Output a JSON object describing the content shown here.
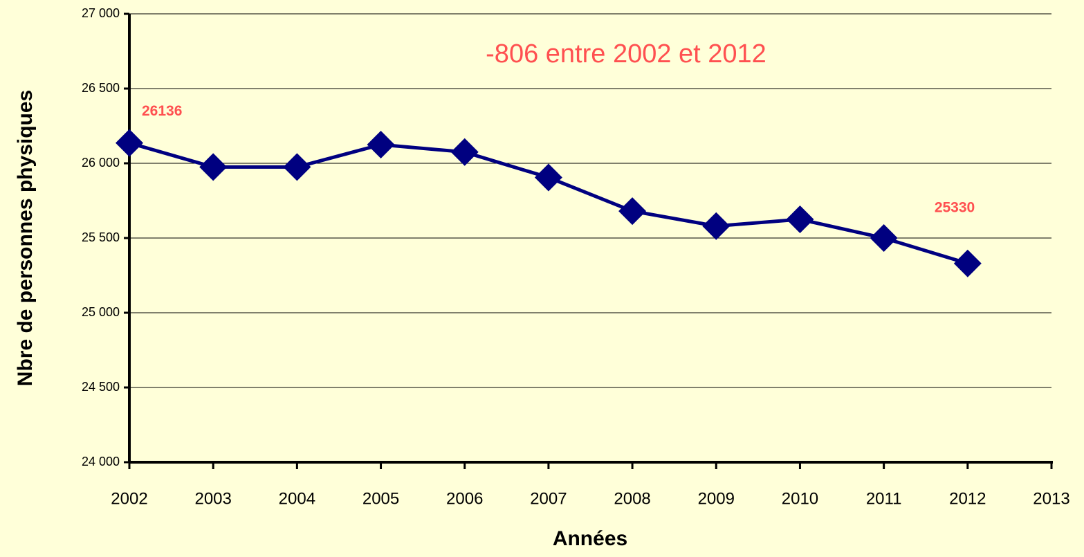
{
  "chart_data": {
    "type": "line",
    "annotation": "-806 entre 2002 et 2012",
    "x_label": "Années",
    "y_label": "Nbre de personnes physiques",
    "x": [
      2002,
      2003,
      2004,
      2005,
      2006,
      2007,
      2008,
      2009,
      2010,
      2011,
      2012
    ],
    "series": [
      {
        "name": "Nbre de personnes physiques",
        "color": "#000080",
        "values": [
          26136,
          25975,
          25975,
          26125,
          26075,
          25905,
          25680,
          25580,
          25625,
          25500,
          25330
        ],
        "value_labels": [
          "26136",
          null,
          null,
          null,
          null,
          null,
          null,
          null,
          null,
          null,
          "25330"
        ],
        "label_color": "#ff5050"
      }
    ],
    "xlim": [
      2002,
      2013
    ],
    "xticks": [
      2002,
      2003,
      2004,
      2005,
      2006,
      2007,
      2008,
      2009,
      2010,
      2011,
      2012,
      2013
    ],
    "ylim": [
      24000,
      27000
    ],
    "yticks": [
      {
        "value": 24000,
        "label": "24 000"
      },
      {
        "value": 24500,
        "label": "24 500"
      },
      {
        "value": 25000,
        "label": "25 000"
      },
      {
        "value": 25500,
        "label": "25 500"
      },
      {
        "value": 26000,
        "label": "26 000"
      },
      {
        "value": 26500,
        "label": "26 500"
      },
      {
        "value": 27000,
        "label": "27 000"
      }
    ],
    "grid": true,
    "annotation_color": "#ff5050"
  }
}
